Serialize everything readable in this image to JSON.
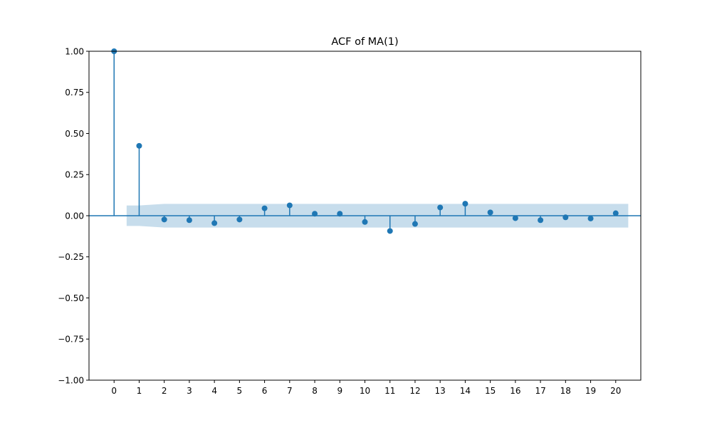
{
  "chart_data": {
    "type": "stem",
    "title": "ACF of MA(1)",
    "xlabel": "",
    "ylabel": "",
    "lags": [
      0,
      1,
      2,
      3,
      4,
      5,
      6,
      7,
      8,
      9,
      10,
      11,
      12,
      13,
      14,
      15,
      16,
      17,
      18,
      19,
      20
    ],
    "acf": [
      1.0,
      0.425,
      -0.023,
      -0.027,
      -0.045,
      -0.023,
      0.045,
      0.063,
      0.012,
      0.012,
      -0.038,
      -0.093,
      -0.05,
      0.05,
      0.073,
      0.02,
      -0.015,
      -0.027,
      -0.01,
      -0.017,
      0.015
    ],
    "confint_upper": [
      null,
      0.062,
      0.072,
      0.072,
      0.072,
      0.072,
      0.072,
      0.072,
      0.072,
      0.072,
      0.072,
      0.072,
      0.072,
      0.072,
      0.072,
      0.072,
      0.072,
      0.072,
      0.072,
      0.072,
      0.072
    ],
    "xlim": [
      -1,
      21
    ],
    "ylim": [
      -1.0,
      1.0
    ],
    "yticks": [
      1.0,
      0.75,
      0.5,
      0.25,
      0.0,
      -0.25,
      -0.5,
      -0.75,
      -1.0
    ],
    "ytick_labels": [
      "1.00",
      "0.75",
      "0.50",
      "0.25",
      "0.00",
      "−0.25",
      "−0.50",
      "−0.75",
      "−1.00"
    ],
    "xtick_labels": [
      "0",
      "1",
      "2",
      "3",
      "4",
      "5",
      "6",
      "7",
      "8",
      "9",
      "10",
      "11",
      "12",
      "13",
      "14",
      "15",
      "16",
      "17",
      "18",
      "19",
      "20"
    ],
    "grid": false,
    "colors": {
      "stem": "#1f77b4",
      "marker": "#1f77b4",
      "zero_line": "#1f77b4",
      "confidence_band": "#1f77b4"
    }
  }
}
